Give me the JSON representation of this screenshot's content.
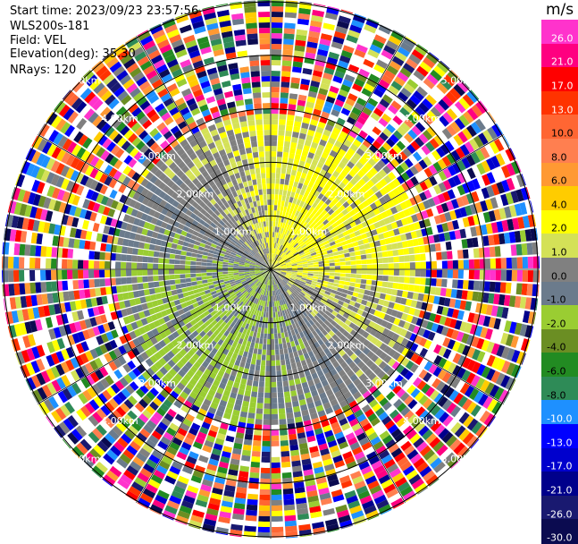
{
  "header": {
    "start_time": "Start time: 2023/09/23 23:57:56",
    "instrument": "WLS200s-181",
    "field": "Field: VEL",
    "elevation": "Elevation(deg): 35.30",
    "nrays": "NRays: 120"
  },
  "colorbar": {
    "unit": "m/s",
    "labels": [
      "26.0",
      "21.0",
      "17.0",
      "13.0",
      "10.0",
      "8.0",
      "6.0",
      "4.0",
      "2.0",
      "1.0",
      "0.0",
      "-1.0",
      "-2.0",
      "-4.0",
      "-6.0",
      "-8.0",
      "-10.0",
      "-13.0",
      "-17.0",
      "-21.0",
      "-26.0",
      "-30.0"
    ],
    "colors": [
      "#ff33cc",
      "#ff0080",
      "#ff0000",
      "#ff3300",
      "#ff6633",
      "#ff7f50",
      "#ff9933",
      "#ffcc00",
      "#ffff00",
      "#d4e157",
      "#808080",
      "#6b7b8c",
      "#9acd32",
      "#6b8e23",
      "#228b22",
      "#2e8b57",
      "#1e90ff",
      "#0000ff",
      "#0000cd",
      "#00008b",
      "#191970",
      "#0b0b50"
    ]
  },
  "chart_data": {
    "type": "heatmap",
    "projection": "polar-ppi",
    "field": "VEL",
    "elevation_deg": 35.3,
    "nrays": 120,
    "range_ring_labels": [
      "1.00km",
      "2.00km",
      "3.00km",
      "4.00km",
      "5.00km"
    ],
    "range_rings_km": [
      1,
      2,
      3,
      4,
      5
    ],
    "color_scale_m_s": [
      26.0,
      21.0,
      17.0,
      13.0,
      10.0,
      8.0,
      6.0,
      4.0,
      2.0,
      1.0,
      0.0,
      -1.0,
      -2.0,
      -4.0,
      -6.0,
      -8.0,
      -10.0,
      -13.0,
      -17.0,
      -21.0,
      -26.0,
      -30.0
    ],
    "valid_data_max_range_km": 3.0,
    "noise_beyond_range_km": 3.0,
    "velocity_pattern": [
      {
        "region": "north",
        "sign": "positive",
        "typical_m_s": 2.0
      },
      {
        "region": "east",
        "sign": "positive",
        "typical_m_s": 2.0
      },
      {
        "region": "south",
        "sign": "negative",
        "typical_m_s": -2.0
      },
      {
        "region": "west",
        "sign": "negative",
        "typical_m_s": -2.0
      }
    ]
  }
}
